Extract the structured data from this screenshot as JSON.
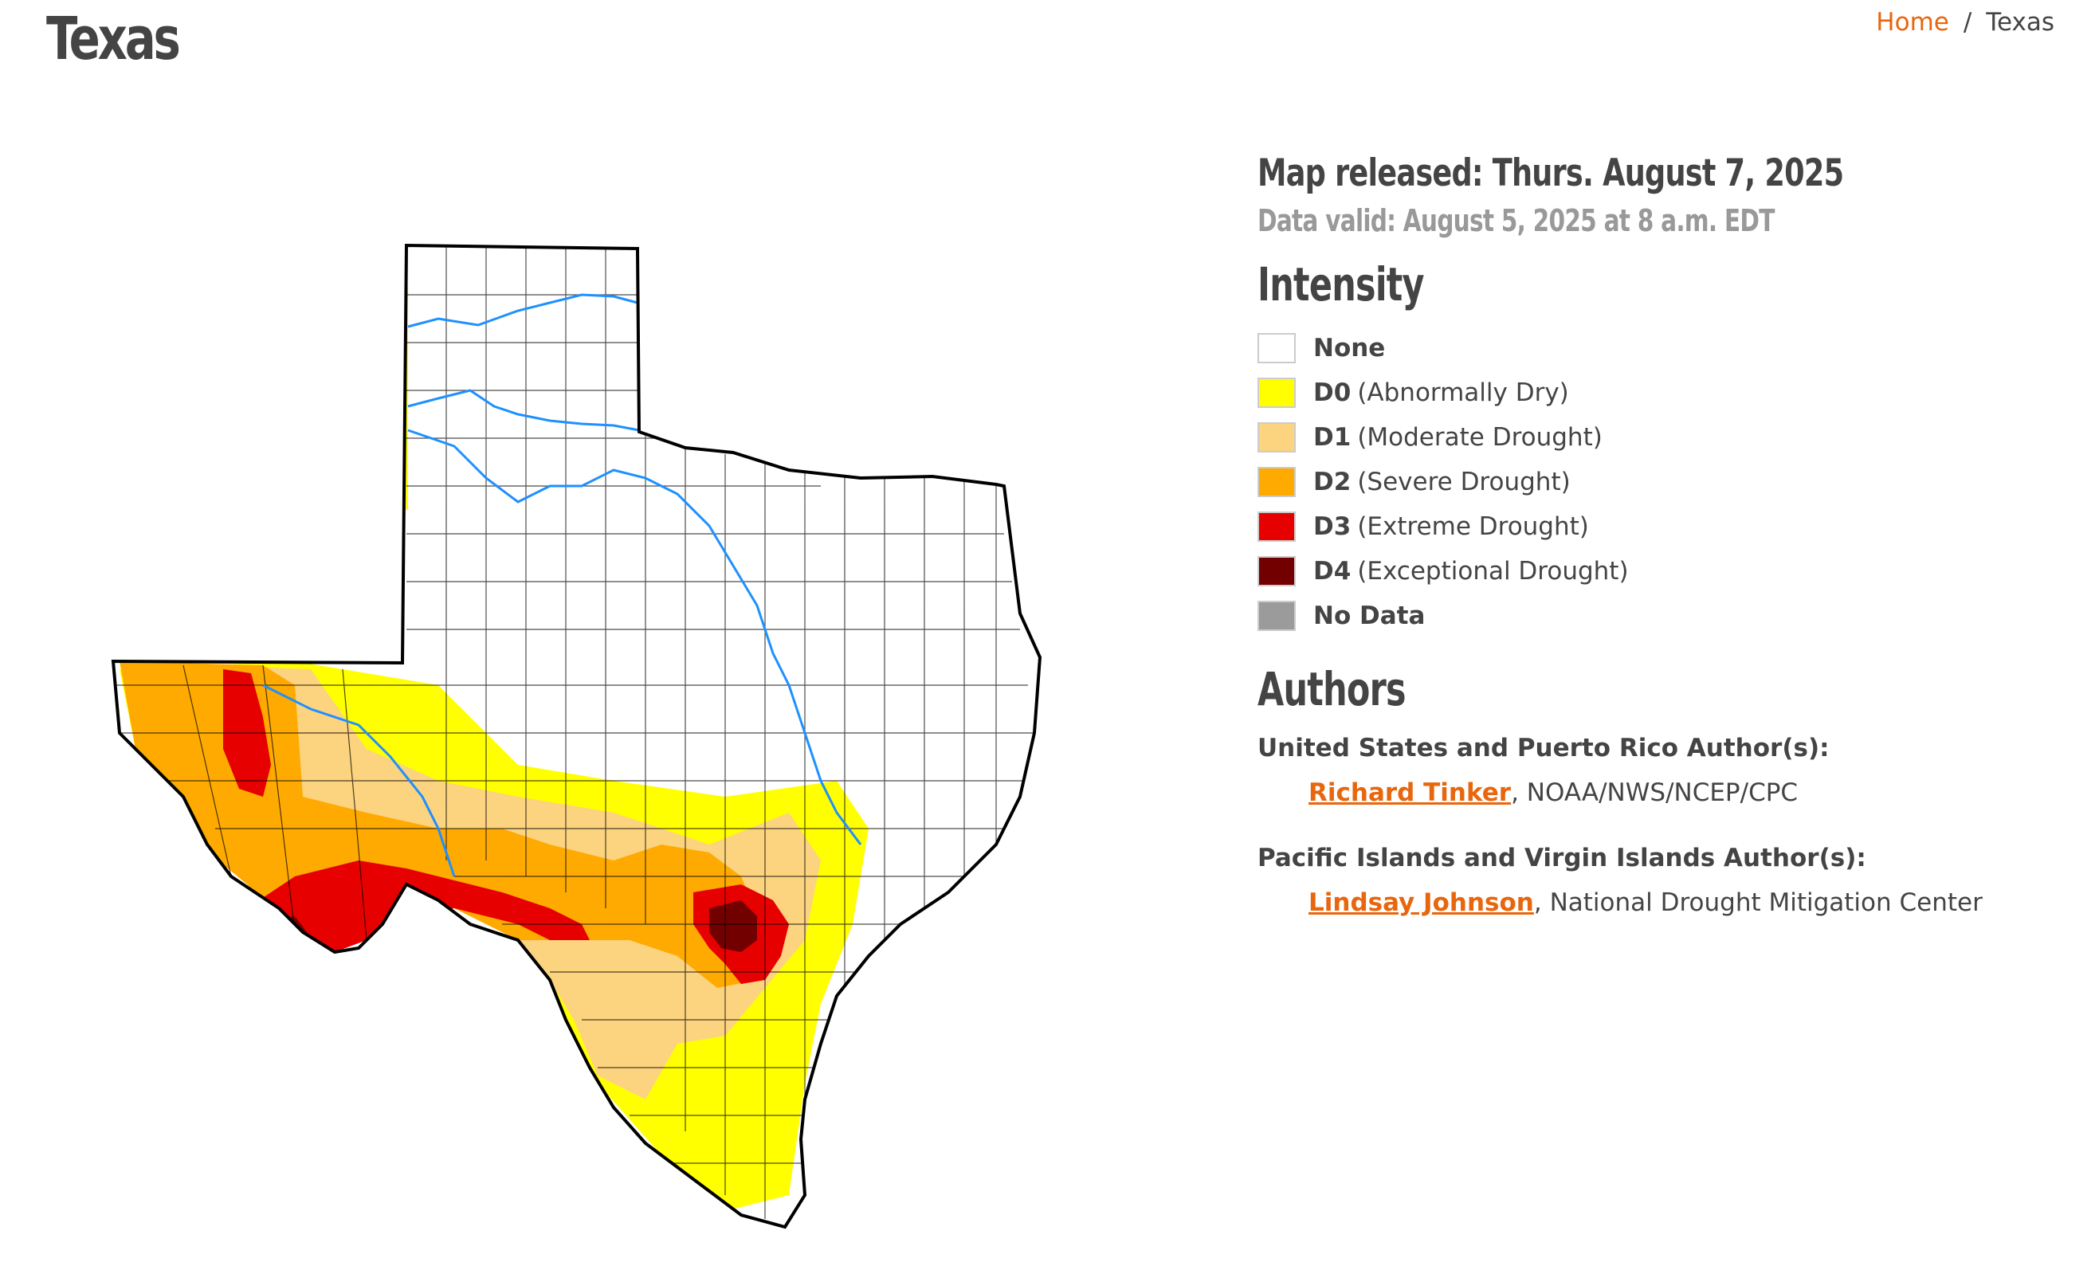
{
  "header": {
    "title": "Texas",
    "breadcrumb": {
      "home": "Home",
      "separator": "/",
      "current": "Texas"
    }
  },
  "map": {
    "released": "Map released: Thurs. August 7, 2025",
    "valid": "Data valid: August 5, 2025 at 8 a.m. EDT"
  },
  "legend": {
    "heading": "Intensity",
    "items": [
      {
        "code": "None",
        "label": "",
        "color": "#ffffff"
      },
      {
        "code": "D0",
        "label": "(Abnormally Dry)",
        "color": "#ffff00"
      },
      {
        "code": "D1",
        "label": "(Moderate Drought)",
        "color": "#fcd37f"
      },
      {
        "code": "D2",
        "label": "(Severe Drought)",
        "color": "#ffaa00"
      },
      {
        "code": "D3",
        "label": "(Extreme Drought)",
        "color": "#e60000"
      },
      {
        "code": "D4",
        "label": "(Exceptional Drought)",
        "color": "#730000"
      },
      {
        "code": "No Data",
        "label": "",
        "color": "#9b9b9b"
      }
    ]
  },
  "authors": {
    "heading": "Authors",
    "groups": [
      {
        "label": "United States and Puerto Rico Author(s):",
        "name": "Richard Tinker",
        "affiliation": ", NOAA/NWS/NCEP/CPC"
      },
      {
        "label": "Pacific Islands and Virgin Islands Author(s):",
        "name": "Lindsay Johnson",
        "affiliation": ", National Drought Mitigation Center"
      }
    ]
  },
  "colors": {
    "accent": "#e8660e",
    "river": "#1e90ff",
    "outline": "#000000"
  }
}
